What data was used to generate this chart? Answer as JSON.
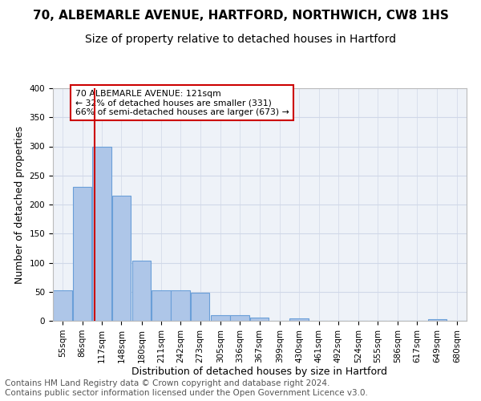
{
  "title1": "70, ALBEMARLE AVENUE, HARTFORD, NORTHWICH, CW8 1HS",
  "title2": "Size of property relative to detached houses in Hartford",
  "xlabel": "Distribution of detached houses by size in Hartford",
  "ylabel": "Number of detached properties",
  "bin_labels": [
    "55sqm",
    "86sqm",
    "117sqm",
    "148sqm",
    "180sqm",
    "211sqm",
    "242sqm",
    "273sqm",
    "305sqm",
    "336sqm",
    "367sqm",
    "399sqm",
    "430sqm",
    "461sqm",
    "492sqm",
    "524sqm",
    "555sqm",
    "586sqm",
    "617sqm",
    "649sqm",
    "680sqm"
  ],
  "bin_edges": [
    55,
    86,
    117,
    148,
    180,
    211,
    242,
    273,
    305,
    336,
    367,
    399,
    430,
    461,
    492,
    524,
    555,
    586,
    617,
    649,
    680
  ],
  "bar_heights": [
    52,
    230,
    300,
    215,
    103,
    52,
    52,
    48,
    10,
    10,
    6,
    0,
    4,
    0,
    0,
    0,
    0,
    0,
    0,
    3,
    0
  ],
  "bar_color": "#aec6e8",
  "bar_edge_color": "#6a9fd8",
  "grid_color": "#d0d8e8",
  "bg_color": "#eef2f8",
  "red_line_x": 121,
  "annotation_box_text": "70 ALBEMARLE AVENUE: 121sqm\n← 32% of detached houses are smaller (331)\n66% of semi-detached houses are larger (673) →",
  "annotation_box_color": "#ffffff",
  "annotation_box_edge": "#cc0000",
  "red_line_color": "#cc0000",
  "ylim": [
    0,
    400
  ],
  "yticks": [
    0,
    50,
    100,
    150,
    200,
    250,
    300,
    350,
    400
  ],
  "footer_text": "Contains HM Land Registry data © Crown copyright and database right 2024.\nContains public sector information licensed under the Open Government Licence v3.0.",
  "title1_fontsize": 11,
  "title2_fontsize": 10,
  "xlabel_fontsize": 9,
  "ylabel_fontsize": 9,
  "tick_fontsize": 7.5,
  "footer_fontsize": 7.5
}
